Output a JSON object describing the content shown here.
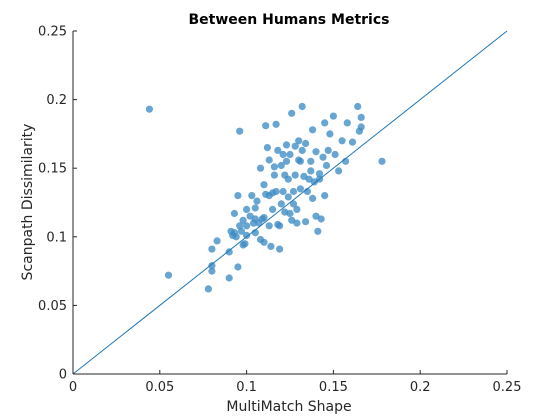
{
  "chart_data": {
    "type": "scatter",
    "title": "Between Humans Metrics",
    "xlabel": "MultiMatch Shape",
    "ylabel": "Scanpath Dissimilarity",
    "xlim": [
      0,
      0.25
    ],
    "ylim": [
      0,
      0.25
    ],
    "xticks": [
      0,
      0.05,
      0.1,
      0.15,
      0.2,
      0.25
    ],
    "yticks": [
      0,
      0.05,
      0.1,
      0.15,
      0.2,
      0.25
    ],
    "xtick_labels": [
      "0",
      "0.05",
      "0.1",
      "0.15",
      "0.2",
      "0.25"
    ],
    "ytick_labels": [
      "0",
      "0.05",
      "0.1",
      "0.15",
      "0.2",
      "0.25"
    ],
    "grid": false,
    "marker_color": "#3d8cc4",
    "line_color": "#1f77b4",
    "reference_line": {
      "x": [
        0,
        0.25
      ],
      "y": [
        0,
        0.25
      ]
    },
    "points": [
      [
        0.044,
        0.193
      ],
      [
        0.055,
        0.072
      ],
      [
        0.078,
        0.062
      ],
      [
        0.08,
        0.075
      ],
      [
        0.08,
        0.079
      ],
      [
        0.08,
        0.091
      ],
      [
        0.083,
        0.097
      ],
      [
        0.09,
        0.07
      ],
      [
        0.09,
        0.089
      ],
      [
        0.091,
        0.104
      ],
      [
        0.092,
        0.101
      ],
      [
        0.093,
        0.117
      ],
      [
        0.093,
        0.103
      ],
      [
        0.094,
        0.1
      ],
      [
        0.095,
        0.078
      ],
      [
        0.095,
        0.13
      ],
      [
        0.096,
        0.177
      ],
      [
        0.096,
        0.108
      ],
      [
        0.097,
        0.104
      ],
      [
        0.098,
        0.112
      ],
      [
        0.098,
        0.094
      ],
      [
        0.099,
        0.095
      ],
      [
        0.1,
        0.108
      ],
      [
        0.1,
        0.101
      ],
      [
        0.1,
        0.12
      ],
      [
        0.102,
        0.115
      ],
      [
        0.103,
        0.13
      ],
      [
        0.104,
        0.11
      ],
      [
        0.105,
        0.121
      ],
      [
        0.105,
        0.113
      ],
      [
        0.105,
        0.103
      ],
      [
        0.106,
        0.126
      ],
      [
        0.107,
        0.11
      ],
      [
        0.108,
        0.098
      ],
      [
        0.108,
        0.15
      ],
      [
        0.109,
        0.113
      ],
      [
        0.11,
        0.096
      ],
      [
        0.11,
        0.138
      ],
      [
        0.11,
        0.114
      ],
      [
        0.111,
        0.131
      ],
      [
        0.111,
        0.181
      ],
      [
        0.112,
        0.165
      ],
      [
        0.113,
        0.108
      ],
      [
        0.113,
        0.156
      ],
      [
        0.113,
        0.13
      ],
      [
        0.114,
        0.093
      ],
      [
        0.115,
        0.12
      ],
      [
        0.115,
        0.132
      ],
      [
        0.116,
        0.145
      ],
      [
        0.116,
        0.151
      ],
      [
        0.117,
        0.182
      ],
      [
        0.117,
        0.133
      ],
      [
        0.118,
        0.163
      ],
      [
        0.118,
        0.109
      ],
      [
        0.119,
        0.091
      ],
      [
        0.119,
        0.108
      ],
      [
        0.12,
        0.124
      ],
      [
        0.12,
        0.152
      ],
      [
        0.121,
        0.16
      ],
      [
        0.121,
        0.133
      ],
      [
        0.122,
        0.145
      ],
      [
        0.122,
        0.118
      ],
      [
        0.123,
        0.167
      ],
      [
        0.123,
        0.155
      ],
      [
        0.124,
        0.142
      ],
      [
        0.124,
        0.129
      ],
      [
        0.125,
        0.16
      ],
      [
        0.125,
        0.117
      ],
      [
        0.126,
        0.112
      ],
      [
        0.126,
        0.19
      ],
      [
        0.127,
        0.124
      ],
      [
        0.127,
        0.133
      ],
      [
        0.128,
        0.166
      ],
      [
        0.128,
        0.145
      ],
      [
        0.129,
        0.12
      ],
      [
        0.129,
        0.11
      ],
      [
        0.13,
        0.156
      ],
      [
        0.13,
        0.17
      ],
      [
        0.131,
        0.135
      ],
      [
        0.131,
        0.155
      ],
      [
        0.132,
        0.163
      ],
      [
        0.132,
        0.195
      ],
      [
        0.133,
        0.144
      ],
      [
        0.134,
        0.111
      ],
      [
        0.134,
        0.168
      ],
      [
        0.135,
        0.133
      ],
      [
        0.136,
        0.142
      ],
      [
        0.137,
        0.148
      ],
      [
        0.137,
        0.155
      ],
      [
        0.138,
        0.178
      ],
      [
        0.138,
        0.128
      ],
      [
        0.139,
        0.14
      ],
      [
        0.14,
        0.162
      ],
      [
        0.14,
        0.115
      ],
      [
        0.141,
        0.104
      ],
      [
        0.142,
        0.142
      ],
      [
        0.142,
        0.146
      ],
      [
        0.143,
        0.113
      ],
      [
        0.144,
        0.158
      ],
      [
        0.145,
        0.183
      ],
      [
        0.145,
        0.13
      ],
      [
        0.146,
        0.152
      ],
      [
        0.147,
        0.163
      ],
      [
        0.148,
        0.175
      ],
      [
        0.15,
        0.188
      ],
      [
        0.151,
        0.16
      ],
      [
        0.153,
        0.148
      ],
      [
        0.155,
        0.17
      ],
      [
        0.157,
        0.155
      ],
      [
        0.158,
        0.183
      ],
      [
        0.161,
        0.169
      ],
      [
        0.164,
        0.195
      ],
      [
        0.165,
        0.177
      ],
      [
        0.166,
        0.18
      ],
      [
        0.166,
        0.187
      ],
      [
        0.178,
        0.155
      ]
    ]
  }
}
